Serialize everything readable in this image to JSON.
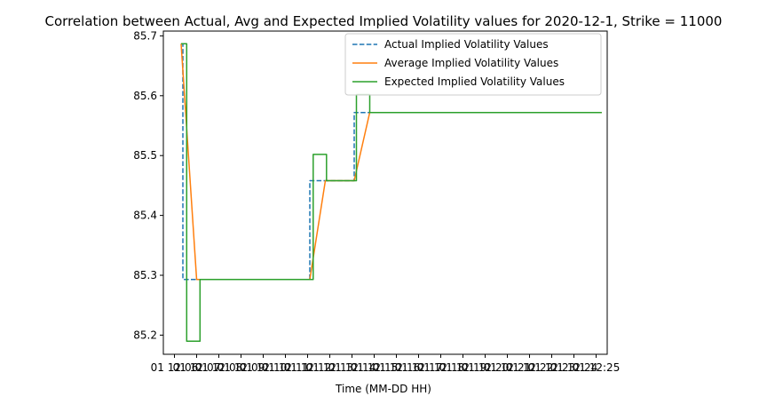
{
  "chart_data": {
    "type": "line",
    "title": "Correlation between Actual, Avg and Expected Implied Volatility values for 2020-12-1, Strike = 11000",
    "xlabel": "Time (MM-DD HH)",
    "ylabel": "",
    "x_unit": "minutes after 12:00 on 12-01 (12:05.5 = 5.5)",
    "xlim": [
      5.5,
      25.5
    ],
    "ylim": [
      85.168,
      85.708
    ],
    "grid": false,
    "legend_position": "upper right",
    "x_ticks": [
      {
        "value": 6,
        "label": "01 12:06"
      },
      {
        "value": 7,
        "label": "01 12:07"
      },
      {
        "value": 8,
        "label": "01 12:08"
      },
      {
        "value": 9,
        "label": "01 12:09"
      },
      {
        "value": 10,
        "label": "01 12:10"
      },
      {
        "value": 11,
        "label": "01 12:11"
      },
      {
        "value": 12,
        "label": "01 12:12"
      },
      {
        "value": 13,
        "label": "01 12:13"
      },
      {
        "value": 14,
        "label": "01 12:14"
      },
      {
        "value": 15,
        "label": "01 12:15"
      },
      {
        "value": 16,
        "label": "01 12:16"
      },
      {
        "value": 17,
        "label": "01 12:17"
      },
      {
        "value": 18,
        "label": "01 12:18"
      },
      {
        "value": 19,
        "label": "01 12:19"
      },
      {
        "value": 20,
        "label": "01 12:20"
      },
      {
        "value": 21,
        "label": "01 12:21"
      },
      {
        "value": 22,
        "label": "01 12:22"
      },
      {
        "value": 23,
        "label": "01 12:23"
      },
      {
        "value": 24,
        "label": "01 12:24"
      },
      {
        "value": 25,
        "label": "01 12:25"
      }
    ],
    "y_ticks": [
      {
        "value": 85.2,
        "label": "85.2"
      },
      {
        "value": 85.3,
        "label": "85.3"
      },
      {
        "value": 85.4,
        "label": "85.4"
      },
      {
        "value": 85.5,
        "label": "85.5"
      },
      {
        "value": 85.6,
        "label": "85.6"
      },
      {
        "value": 85.7,
        "label": "85.7"
      }
    ],
    "series": [
      {
        "name": "Actual Implied Volatility Values",
        "color": "#1f77b4",
        "dash": "dashed",
        "x": [
          6.3,
          6.38,
          6.38,
          12.1,
          12.1,
          14.1,
          14.1,
          25.25
        ],
        "y": [
          85.687,
          85.687,
          85.293,
          85.293,
          85.458,
          85.458,
          85.572,
          85.572
        ]
      },
      {
        "name": "Average Implied Volatility Values",
        "color": "#ff7f0e",
        "dash": "solid",
        "x": [
          6.3,
          7.0,
          12.1,
          12.8,
          14.1,
          14.8,
          25.25
        ],
        "y": [
          85.687,
          85.293,
          85.293,
          85.458,
          85.458,
          85.572,
          85.572
        ]
      },
      {
        "name": "Expected Implied Volatility Values",
        "color": "#2ca02c",
        "dash": "solid",
        "x": [
          6.3,
          6.55,
          6.55,
          7.15,
          7.15,
          12.25,
          12.25,
          12.85,
          12.85,
          14.2,
          14.2,
          14.8,
          14.8,
          25.25
        ],
        "y": [
          85.687,
          85.687,
          85.19,
          85.19,
          85.293,
          85.293,
          85.502,
          85.502,
          85.458,
          85.458,
          85.602,
          85.602,
          85.572,
          85.572
        ]
      }
    ]
  }
}
